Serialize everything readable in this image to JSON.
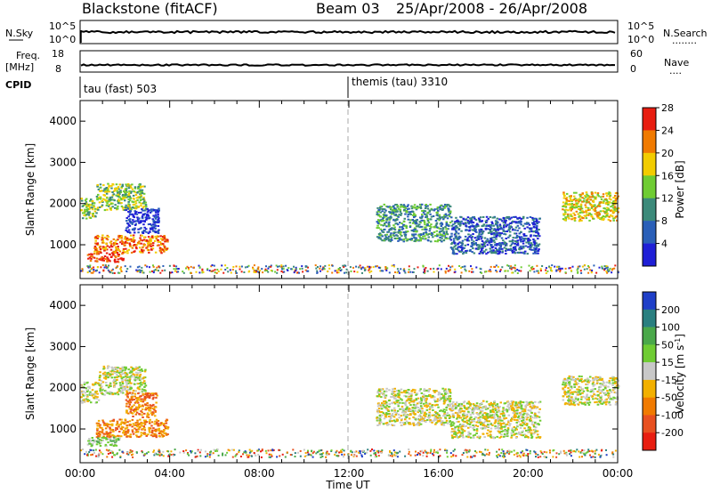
{
  "header": {
    "station": "Blackstone (fitACF)",
    "beam": "Beam 03",
    "dates": "25/Apr/2008 - 26/Apr/2008"
  },
  "nsky_panel": {
    "left_label": "N.Sky",
    "right_label": "N.Search",
    "right_dots": "........",
    "left_ticks": [
      "10^5",
      "10^0"
    ],
    "right_ticks": [
      "10^5",
      "10^0"
    ]
  },
  "freq_panel": {
    "left_label_1": "Freq.",
    "left_label_2": "[MHz]",
    "right_label": "Nave",
    "right_dots": "....",
    "left_ticks": [
      "18",
      "8"
    ],
    "right_ticks": [
      "60",
      "0"
    ]
  },
  "cpid_panel": {
    "label": "CPID",
    "modes": [
      {
        "name": "tau (fast) 503",
        "start_hour": 0
      },
      {
        "name": "themis (tau) 3310",
        "start_hour": 12
      }
    ]
  },
  "chart_data": [
    {
      "type": "heatmap",
      "name": "power",
      "xlabel": "",
      "ylabel": "Slant Range [km]",
      "x_range_hours": [
        0,
        24
      ],
      "ylim": [
        180,
        4500
      ],
      "y_ticks": [
        1000,
        2000,
        3000,
        4000
      ],
      "colorbar": {
        "label": "Power [dB]",
        "ticks": [
          "4",
          "8",
          "12",
          "16",
          "20",
          "24",
          "28"
        ],
        "colors": [
          "#1f1fd6",
          "#2a5fb8",
          "#3c8a7a",
          "#6fcc33",
          "#f2cc00",
          "#f07a00",
          "#e81d10"
        ]
      },
      "echo_regions": [
        {
          "t0": 0.0,
          "t1": 0.7,
          "r0": 1650,
          "r1": 2150,
          "level": 3
        },
        {
          "t0": 0.7,
          "t1": 2.9,
          "r0": 1850,
          "r1": 2500,
          "level": 3
        },
        {
          "t0": 0.6,
          "t1": 3.9,
          "r0": 820,
          "r1": 1250,
          "level": 5
        },
        {
          "t0": 0.3,
          "t1": 1.9,
          "r0": 600,
          "r1": 820,
          "level": 6
        },
        {
          "t0": 2.0,
          "t1": 3.5,
          "r0": 1300,
          "r1": 1900,
          "level": 0
        },
        {
          "t0": 13.2,
          "t1": 16.5,
          "r0": 1100,
          "r1": 2000,
          "level": 2
        },
        {
          "t0": 16.5,
          "t1": 20.5,
          "r0": 800,
          "r1": 1700,
          "level": 1
        },
        {
          "t0": 21.5,
          "t1": 24.0,
          "r0": 1600,
          "r1": 2300,
          "level": 4
        }
      ]
    },
    {
      "type": "heatmap",
      "name": "velocity",
      "xlabel": "Time UT",
      "ylabel": "Slant Range [km]",
      "x_range_hours": [
        0,
        24
      ],
      "x_ticks": [
        "00:00",
        "04:00",
        "08:00",
        "12:00",
        "16:00",
        "20:00",
        "00:00"
      ],
      "ylim": [
        180,
        4500
      ],
      "y_ticks": [
        1000,
        2000,
        3000,
        4000
      ],
      "colorbar": {
        "label": "Velocity [m s^-1]",
        "ticks": [
          "200",
          "100",
          "50",
          "15",
          "-15",
          "-50",
          "-100",
          "-200"
        ],
        "colors": [
          "#1f3fc8",
          "#2a7f80",
          "#4aa84a",
          "#6fcc33",
          "#c8c8c8",
          "#f2b000",
          "#f07a00",
          "#e85020",
          "#e81d10"
        ]
      },
      "echo_regions": [
        {
          "t0": 0.0,
          "t1": 0.8,
          "r0": 1650,
          "r1": 2150,
          "level": 4
        },
        {
          "t0": 0.8,
          "t1": 2.9,
          "r0": 1850,
          "r1": 2550,
          "level": 4
        },
        {
          "t0": 0.7,
          "t1": 3.9,
          "r0": 820,
          "r1": 1250,
          "level": 6
        },
        {
          "t0": 0.3,
          "t1": 1.8,
          "r0": 600,
          "r1": 820,
          "level": 3
        },
        {
          "t0": 2.0,
          "t1": 3.4,
          "r0": 1300,
          "r1": 1900,
          "level": 6
        },
        {
          "t0": 13.2,
          "t1": 16.5,
          "r0": 1100,
          "r1": 2000,
          "level": 4
        },
        {
          "t0": 16.5,
          "t1": 20.5,
          "r0": 800,
          "r1": 1700,
          "level": 4
        },
        {
          "t0": 21.5,
          "t1": 24.0,
          "r0": 1600,
          "r1": 2300,
          "level": 4
        }
      ]
    }
  ]
}
